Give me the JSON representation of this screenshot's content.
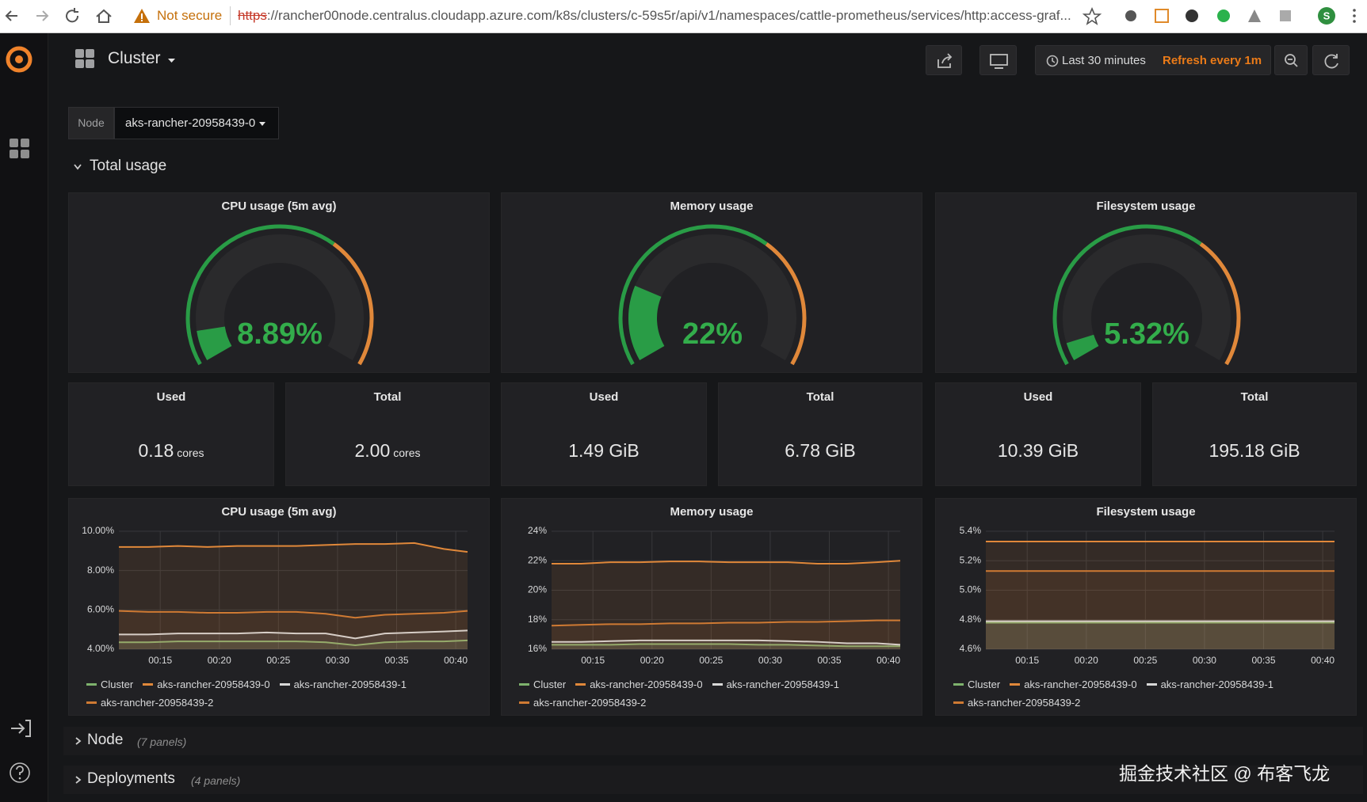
{
  "browser": {
    "security": "Not secure",
    "url_scheme": "https",
    "url_rest": "://rancher00node.centralus.cloudapp.azure.com/k8s/clusters/c-59s5r/api/v1/namespaces/cattle-prometheus/services/http:access-graf...",
    "profile": "S"
  },
  "header": {
    "title": "Cluster",
    "time_range": "Last 30 minutes",
    "refresh": "Refresh every 1m"
  },
  "variable": {
    "label": "Node",
    "value": "aks-rancher-20958439-0"
  },
  "rows": [
    {
      "title": "Total usage"
    },
    {
      "title": "Node",
      "note": "(7 panels)"
    },
    {
      "title": "Deployments",
      "note": "(4 panels)"
    }
  ],
  "gauge_colors": {
    "ok": "#299c46",
    "warn": "#e0883a",
    "text": "#33ad4b",
    "track": "#2a2a2c"
  },
  "gauges": [
    {
      "title": "CPU usage (5m avg)",
      "value": 8.89,
      "label": "8.89%",
      "min": 0,
      "max": 100,
      "threshold": 65
    },
    {
      "title": "Memory usage",
      "value": 22,
      "label": "22%",
      "min": 0,
      "max": 100,
      "threshold": 65
    },
    {
      "title": "Filesystem usage",
      "value": 5.32,
      "label": "5.32%",
      "min": 0,
      "max": 100,
      "threshold": 65
    }
  ],
  "stats": [
    {
      "title": "Used",
      "value": "0.18",
      "unit": "cores"
    },
    {
      "title": "Total",
      "value": "2.00",
      "unit": "cores"
    },
    {
      "title": "Used",
      "value": "1.49 GiB"
    },
    {
      "title": "Total",
      "value": "6.78 GiB"
    },
    {
      "title": "Used",
      "value": "10.39 GiB"
    },
    {
      "title": "Total",
      "value": "195.18 GiB"
    }
  ],
  "graphs": [
    {
      "type": "line",
      "title": "CPU usage (5m avg)",
      "x": [
        11.5,
        14,
        16.5,
        19,
        21.5,
        24,
        26.5,
        29,
        31.5,
        34,
        36.5,
        39,
        41
      ],
      "xlim": [
        11.5,
        41
      ],
      "xticks": [
        {
          "value": 15,
          "label": "00:15"
        },
        {
          "value": 20,
          "label": "00:20"
        },
        {
          "value": 25,
          "label": "00:25"
        },
        {
          "value": 30,
          "label": "00:30"
        },
        {
          "value": 35,
          "label": "00:35"
        },
        {
          "value": 40,
          "label": "00:40"
        }
      ],
      "ylim": [
        4,
        10
      ],
      "yticks": [
        {
          "value": 4,
          "label": "4.00%"
        },
        {
          "value": 6,
          "label": "6.00%"
        },
        {
          "value": 8,
          "label": "8.00%"
        },
        {
          "value": 10,
          "label": "10.00%"
        }
      ],
      "grid": true,
      "series": [
        {
          "name": "Cluster",
          "color": "#7eb26d",
          "values": [
            4.35,
            4.35,
            4.4,
            4.4,
            4.4,
            4.4,
            4.4,
            4.35,
            4.2,
            4.35,
            4.4,
            4.4,
            4.45
          ]
        },
        {
          "name": "aks-rancher-20958439-0",
          "color": "#e0883a",
          "values": [
            9.2,
            9.2,
            9.25,
            9.2,
            9.25,
            9.25,
            9.25,
            9.3,
            9.35,
            9.35,
            9.4,
            9.1,
            8.95
          ]
        },
        {
          "name": "aks-rancher-20958439-1",
          "color": "#d8d8d8",
          "values": [
            4.75,
            4.75,
            4.8,
            4.8,
            4.8,
            4.85,
            4.8,
            4.8,
            4.55,
            4.8,
            4.85,
            4.9,
            4.95
          ]
        },
        {
          "name": "aks-rancher-20958439-2",
          "color": "#cf7a33",
          "values": [
            5.95,
            5.9,
            5.9,
            5.85,
            5.85,
            5.9,
            5.9,
            5.8,
            5.6,
            5.75,
            5.8,
            5.85,
            5.95
          ]
        }
      ]
    },
    {
      "type": "line",
      "title": "Memory usage",
      "x": [
        11.5,
        14,
        16.5,
        19,
        21.5,
        24,
        26.5,
        29,
        31.5,
        34,
        36.5,
        39,
        41
      ],
      "xlim": [
        11.5,
        41
      ],
      "xticks": [
        {
          "value": 15,
          "label": "00:15"
        },
        {
          "value": 20,
          "label": "00:20"
        },
        {
          "value": 25,
          "label": "00:25"
        },
        {
          "value": 30,
          "label": "00:30"
        },
        {
          "value": 35,
          "label": "00:35"
        },
        {
          "value": 40,
          "label": "00:40"
        }
      ],
      "ylim": [
        16,
        24
      ],
      "yticks": [
        {
          "value": 16,
          "label": "16%"
        },
        {
          "value": 18,
          "label": "18%"
        },
        {
          "value": 20,
          "label": "20%"
        },
        {
          "value": 22,
          "label": "22%"
        },
        {
          "value": 24,
          "label": "24%"
        }
      ],
      "grid": true,
      "series": [
        {
          "name": "Cluster",
          "color": "#7eb26d",
          "values": [
            16.3,
            16.3,
            16.3,
            16.35,
            16.35,
            16.35,
            16.35,
            16.3,
            16.3,
            16.25,
            16.2,
            16.2,
            16.2
          ]
        },
        {
          "name": "aks-rancher-20958439-0",
          "color": "#e0883a",
          "values": [
            21.8,
            21.8,
            21.9,
            21.9,
            21.95,
            21.95,
            21.9,
            21.9,
            21.9,
            21.8,
            21.8,
            21.9,
            22.0
          ]
        },
        {
          "name": "aks-rancher-20958439-1",
          "color": "#d8d8d8",
          "values": [
            16.5,
            16.5,
            16.55,
            16.6,
            16.6,
            16.6,
            16.6,
            16.6,
            16.55,
            16.5,
            16.4,
            16.4,
            16.3
          ]
        },
        {
          "name": "aks-rancher-20958439-2",
          "color": "#cf7a33",
          "values": [
            17.6,
            17.65,
            17.7,
            17.7,
            17.75,
            17.75,
            17.8,
            17.8,
            17.85,
            17.85,
            17.9,
            17.95,
            17.95
          ]
        }
      ]
    },
    {
      "type": "line",
      "title": "Filesystem usage",
      "x": [
        11.5,
        14,
        16.5,
        19,
        21.5,
        24,
        26.5,
        29,
        31.5,
        34,
        36.5,
        39,
        41
      ],
      "xlim": [
        11.5,
        41
      ],
      "xticks": [
        {
          "value": 15,
          "label": "00:15"
        },
        {
          "value": 20,
          "label": "00:20"
        },
        {
          "value": 25,
          "label": "00:25"
        },
        {
          "value": 30,
          "label": "00:30"
        },
        {
          "value": 35,
          "label": "00:35"
        },
        {
          "value": 40,
          "label": "00:40"
        }
      ],
      "ylim": [
        4.6,
        5.4
      ],
      "yticks": [
        {
          "value": 4.6,
          "label": "4.6%"
        },
        {
          "value": 4.8,
          "label": "4.8%"
        },
        {
          "value": 5.0,
          "label": "5.0%"
        },
        {
          "value": 5.2,
          "label": "5.2%"
        },
        {
          "value": 5.4,
          "label": "5.4%"
        }
      ],
      "grid": true,
      "series": [
        {
          "name": "Cluster",
          "color": "#7eb26d",
          "values": [
            4.78,
            4.78,
            4.78,
            4.78,
            4.78,
            4.78,
            4.78,
            4.78,
            4.78,
            4.78,
            4.78,
            4.78,
            4.78
          ]
        },
        {
          "name": "aks-rancher-20958439-0",
          "color": "#e0883a",
          "values": [
            5.33,
            5.33,
            5.33,
            5.33,
            5.33,
            5.33,
            5.33,
            5.33,
            5.33,
            5.33,
            5.33,
            5.33,
            5.33
          ]
        },
        {
          "name": "aks-rancher-20958439-1",
          "color": "#d8d8d8",
          "values": [
            4.79,
            4.79,
            4.79,
            4.79,
            4.79,
            4.79,
            4.79,
            4.79,
            4.79,
            4.79,
            4.79,
            4.79,
            4.79
          ]
        },
        {
          "name": "aks-rancher-20958439-2",
          "color": "#cf7a33",
          "values": [
            5.13,
            5.13,
            5.13,
            5.13,
            5.13,
            5.13,
            5.13,
            5.13,
            5.13,
            5.13,
            5.13,
            5.13,
            5.13
          ]
        }
      ]
    }
  ],
  "watermark": "掘金技术社区 @ 布客飞龙"
}
